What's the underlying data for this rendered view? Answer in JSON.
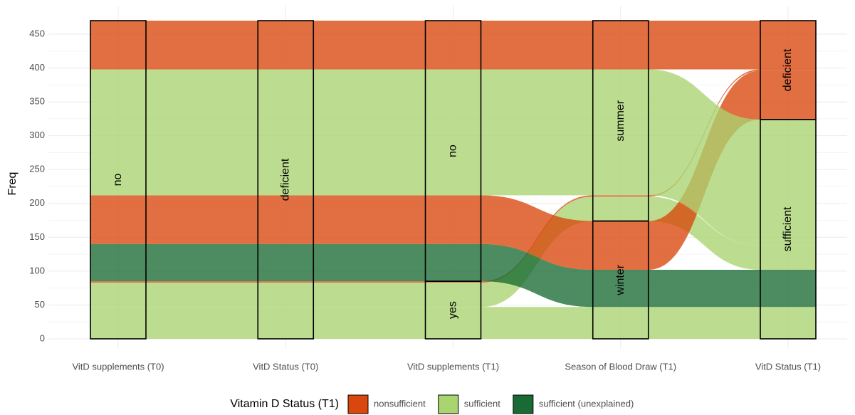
{
  "chart_data": {
    "type": "alluvial",
    "ylabel": "Freq",
    "ylim": [
      0,
      470
    ],
    "yticks": [
      0,
      50,
      100,
      150,
      200,
      250,
      300,
      350,
      400,
      450
    ],
    "grid": true,
    "axes": [
      {
        "name": "VitD supplements (T0)",
        "strata": [
          "no"
        ]
      },
      {
        "name": "VitD Status (T0)",
        "strata": [
          "deficient"
        ]
      },
      {
        "name": "VitD supplements (T1)",
        "strata": [
          "yes",
          "no"
        ]
      },
      {
        "name": "Season of Blood Draw (T1)",
        "strata": [
          "winter",
          "summer"
        ]
      },
      {
        "name": "VitD Status (T1)",
        "strata": [
          "sufficient",
          "deficient"
        ]
      }
    ],
    "legend_title": "Vitamin D Status (T1)",
    "series": [
      {
        "name": "nonsufficient",
        "color": "#d9470c"
      },
      {
        "name": "sufficient",
        "color": "#a9d470"
      },
      {
        "name": "sufficient (unexplained)",
        "color": "#1a6b33"
      }
    ],
    "alluvia": [
      {
        "strata": [
          "no",
          "deficient",
          "yes",
          "winter",
          "sufficient"
        ],
        "fill": "sufficient",
        "freq": 47
      },
      {
        "strata": [
          "no",
          "deficient",
          "yes",
          "summer",
          "sufficient"
        ],
        "fill": "sufficient",
        "freq": 36
      },
      {
        "strata": [
          "no",
          "deficient",
          "yes",
          "summer",
          "deficient"
        ],
        "fill": "nonsufficient",
        "freq": 2
      },
      {
        "strata": [
          "no",
          "deficient",
          "no",
          "winter",
          "sufficient"
        ],
        "fill": "sufficient (unexplained)",
        "freq": 55
      },
      {
        "strata": [
          "no",
          "deficient",
          "no",
          "winter",
          "deficient"
        ],
        "fill": "nonsufficient",
        "freq": 72
      },
      {
        "strata": [
          "no",
          "deficient",
          "no",
          "summer",
          "sufficient"
        ],
        "fill": "sufficient",
        "freq": 186
      },
      {
        "strata": [
          "no",
          "deficient",
          "no",
          "summer",
          "deficient"
        ],
        "fill": "nonsufficient",
        "freq": 72
      }
    ]
  }
}
